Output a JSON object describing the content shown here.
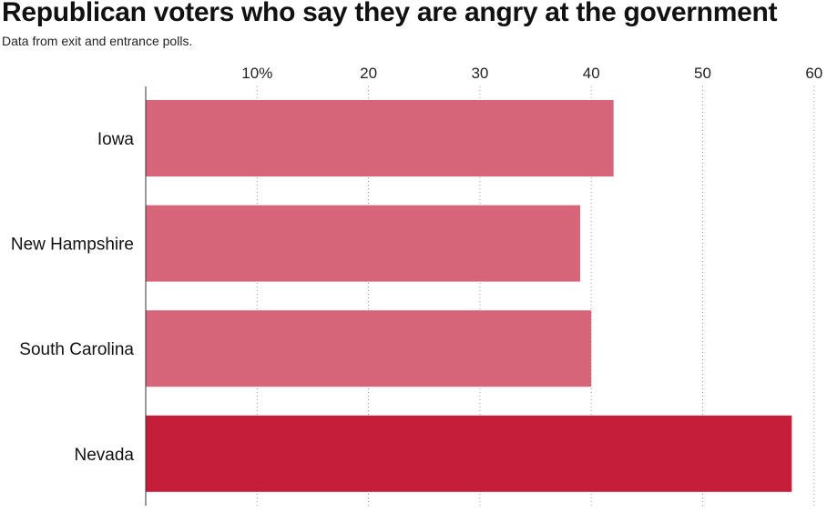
{
  "chart_data": {
    "type": "bar",
    "orientation": "horizontal",
    "title": "Republican voters who say they are angry at the government",
    "subtitle": "Data from exit and entrance polls.",
    "categories": [
      "Iowa",
      "New Hampshire",
      "South Carolina",
      "Nevada"
    ],
    "values": [
      42,
      39,
      40,
      58
    ],
    "highlight_category": "Nevada",
    "xlim": [
      0,
      60
    ],
    "xticks": [
      10,
      20,
      30,
      40,
      50,
      60
    ],
    "xtick_labels": [
      "10%",
      "20",
      "30",
      "40",
      "50",
      "60"
    ],
    "x_axis_position": "top",
    "grid": "vertical dotted",
    "colors": {
      "bar": "#d6657a",
      "highlight": "#c41e3a",
      "grid": "#999999",
      "axis": "#333333"
    }
  }
}
